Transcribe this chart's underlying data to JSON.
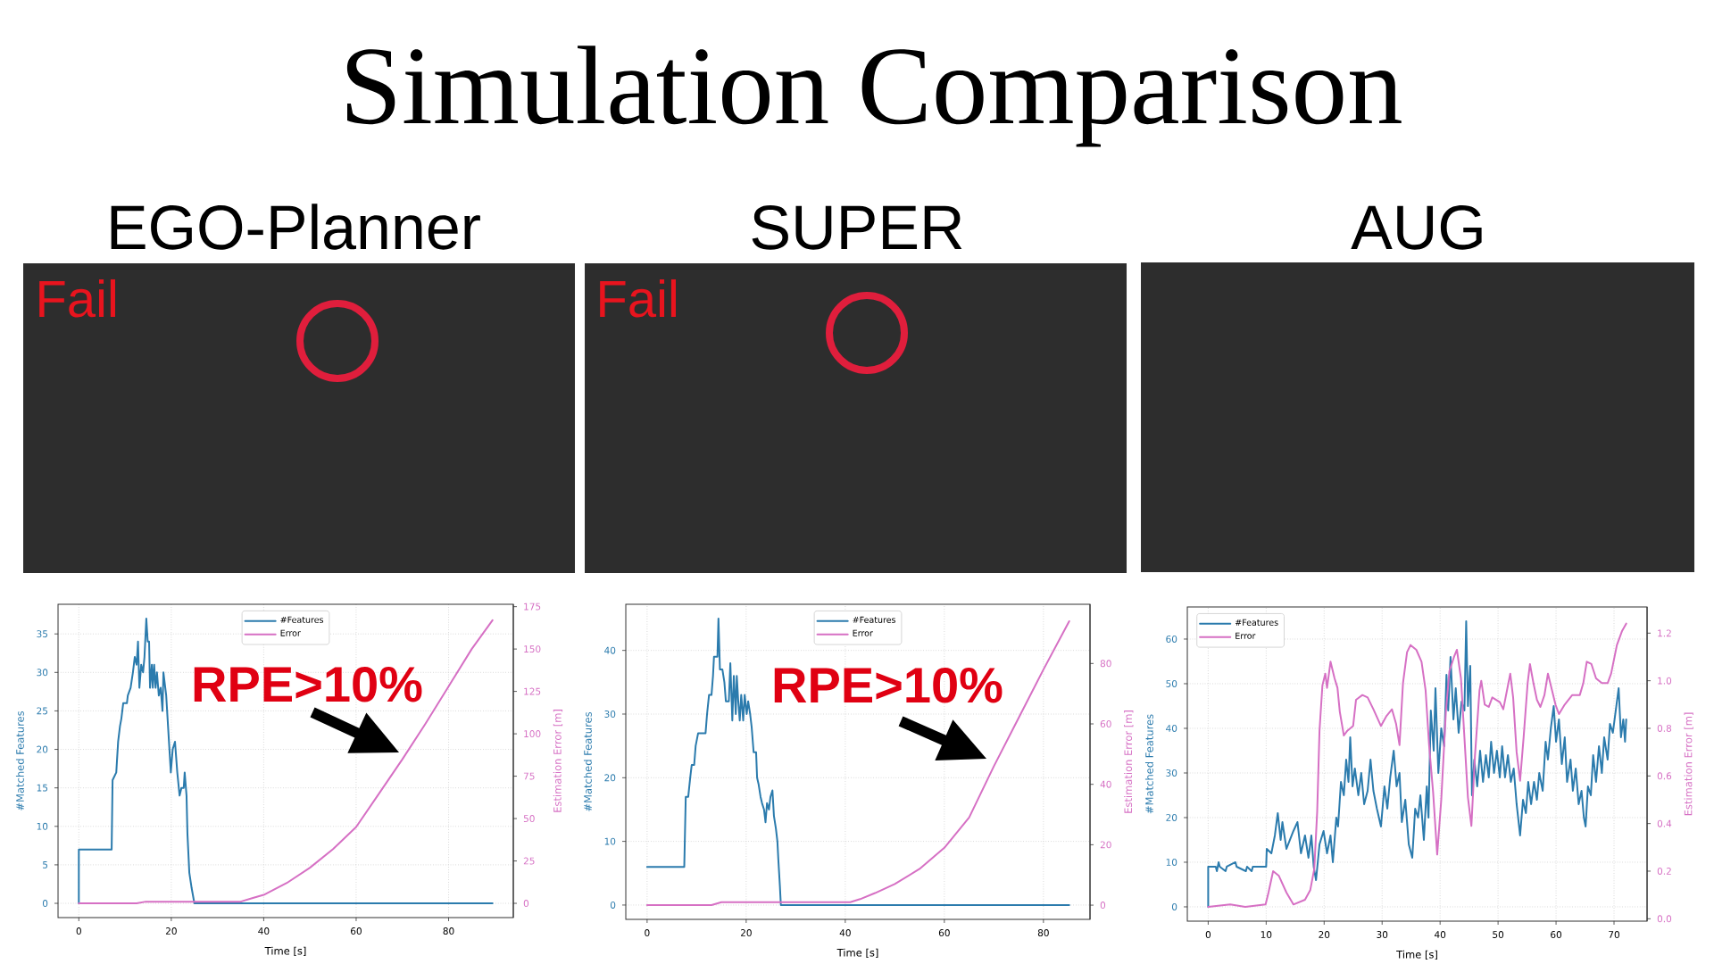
{
  "chart_data": [
    {
      "type": "other",
      "title": "Simulation Comparison"
    },
    {
      "type": "line",
      "title": "EGO-Planner",
      "xlabel": "Time [s]",
      "ylabel": "#Matched Features",
      "y2label": "Estimation Error [m]",
      "annotations": [
        "Fail",
        "RPE>10%"
      ],
      "xlim": [
        -4.5,
        94
      ],
      "xticks": [
        0,
        20,
        40,
        60,
        80
      ],
      "ylim": [
        -1.85,
        38.85
      ],
      "yticks": [
        0,
        5,
        10,
        15,
        20,
        25,
        30,
        35
      ],
      "y2lim": [
        -8.4,
        176.4
      ],
      "y2ticks": [
        0,
        25,
        50,
        75,
        100,
        125,
        150,
        175
      ],
      "grid": true,
      "legend": "top",
      "series": [
        {
          "name": "#Features",
          "color": "#2b7bad",
          "x": [
            0,
            0,
            7.1,
            7.3,
            8.1,
            8.5,
            8.9,
            9.2,
            9.6,
            10.4,
            10.6,
            11.2,
            11.7,
            12.1,
            12.5,
            12.8,
            13.1,
            13.5,
            13.9,
            14.2,
            14.6,
            14.9,
            15.2,
            15.4,
            15.8,
            16.0,
            16.3,
            16.6,
            16.9,
            17.3,
            17.7,
            18.1,
            18.3,
            18.9,
            19.3,
            19.9,
            20.3,
            20.8,
            21.3,
            21.8,
            22.2,
            22.7,
            22.9,
            23.3,
            23.5,
            23.9,
            24.4,
            25.0,
            89.5
          ],
          "values": [
            0,
            7,
            7,
            16,
            17,
            21,
            23,
            24,
            26,
            26,
            27,
            28,
            30,
            32,
            31,
            34,
            28,
            31,
            30,
            32,
            37,
            34,
            34,
            28,
            31,
            28,
            31,
            28,
            30,
            27,
            28,
            25,
            30,
            27,
            23,
            17,
            20,
            21,
            17,
            14,
            15,
            15,
            17,
            14,
            9,
            4,
            2,
            0,
            0
          ]
        },
        {
          "name": "Error",
          "color": "#d670c4",
          "axis": "y2",
          "x": [
            0,
            12.5,
            14.5,
            17,
            20,
            25,
            30,
            35,
            37.5,
            40,
            45,
            50,
            55,
            60,
            65,
            70,
            75,
            80,
            85,
            89.5
          ],
          "values": [
            0,
            0,
            1,
            1,
            1,
            1,
            1,
            1,
            3,
            5,
            12,
            21,
            32,
            45,
            65,
            85,
            106,
            128,
            150,
            167
          ]
        }
      ]
    },
    {
      "type": "line",
      "title": "SUPER",
      "xlabel": "Time [s]",
      "ylabel": "#Matched Features",
      "y2label": "Estimation Error [m]",
      "annotations": [
        "Fail",
        "RPE>10%"
      ],
      "xlim": [
        -4.3,
        89.4
      ],
      "xticks": [
        0,
        20,
        40,
        60,
        80
      ],
      "ylim": [
        -2.25,
        47.25
      ],
      "yticks": [
        0,
        10,
        20,
        30,
        40
      ],
      "y2lim": [
        -4.7,
        99.6
      ],
      "y2ticks": [
        0,
        20,
        40,
        60,
        80
      ],
      "grid": true,
      "legend": "top",
      "series": [
        {
          "name": "#Features",
          "color": "#2b7bad",
          "x": [
            0,
            7.5,
            7.8,
            8.3,
            8.7,
            9.0,
            9.5,
            9.8,
            10.3,
            11.8,
            12.1,
            12.5,
            13.0,
            13.3,
            13.5,
            14.2,
            14.4,
            14.7,
            15.2,
            15.6,
            15.9,
            16.5,
            16.8,
            17.2,
            17.5,
            17.9,
            18.1,
            18.4,
            18.7,
            19.0,
            19.4,
            19.7,
            20.1,
            20.4,
            20.8,
            21.1,
            21.5,
            22.0,
            22.2,
            22.5,
            22.9,
            23.2,
            23.6,
            23.9,
            24.2,
            24.6,
            24.9,
            25.3,
            25.6,
            26.0,
            26.3,
            26.5,
            26.8,
            27.0,
            85.2
          ],
          "values": [
            6,
            6,
            17,
            17,
            20,
            22,
            22,
            25,
            27,
            27,
            30,
            33,
            33,
            36,
            39,
            39,
            45,
            37,
            37,
            35,
            32,
            32,
            38,
            29,
            36,
            30,
            36,
            32,
            29,
            33,
            29,
            33,
            30,
            32,
            30,
            28,
            24,
            24,
            20,
            19,
            17,
            16,
            15,
            13,
            16,
            15,
            17,
            18,
            14,
            12,
            10,
            7,
            3,
            0,
            0
          ]
        },
        {
          "name": "Error",
          "color": "#d670c4",
          "axis": "y2",
          "x": [
            0,
            13,
            15,
            20,
            25,
            27,
            30,
            35,
            41,
            43,
            46,
            50,
            55,
            60,
            65,
            70,
            75,
            80,
            85.2
          ],
          "values": [
            0,
            0,
            1,
            1,
            1,
            1,
            1,
            1,
            1,
            2,
            4,
            7,
            12,
            19,
            29,
            46,
            62,
            78,
            94
          ]
        }
      ]
    },
    {
      "type": "line",
      "title": "AUG",
      "xlabel": "Time [s]",
      "ylabel": "#Matched Features",
      "y2label": "Estimation Error [m]",
      "xlim": [
        -3.6,
        75.7
      ],
      "xticks": [
        0,
        10,
        20,
        30,
        40,
        50,
        60,
        70
      ],
      "ylim": [
        -3.2,
        67.2
      ],
      "yticks": [
        0,
        10,
        20,
        30,
        40,
        50,
        60
      ],
      "y2lim": [
        -0.01,
        1.31
      ],
      "y2ticks": [
        {
          "value": 0,
          "label": "0.0"
        },
        0.2,
        0.4,
        0.6,
        0.8,
        {
          "value": 1,
          "label": "1.0"
        },
        1.2
      ],
      "grid": true,
      "legend": "top left",
      "series": [
        {
          "name": "#Features",
          "color": "#2b7bad",
          "x": [
            0,
            0,
            1.3,
            1.5,
            1.8,
            2.0,
            3.0,
            3.2,
            4.7,
            4.9,
            6.5,
            6.7,
            7.5,
            7.7,
            10.0,
            10.1,
            10.9,
            11.5,
            12.0,
            12.5,
            12.8,
            13.5,
            14.1,
            14.7,
            15.4,
            16.0,
            16.7,
            17.3,
            17.8,
            18.2,
            18.6,
            19.2,
            19.9,
            20.5,
            21.1,
            21.5,
            22.1,
            22.4,
            22.9,
            23.4,
            23.8,
            24.2,
            24.5,
            24.9,
            25.3,
            25.9,
            26.4,
            26.9,
            27.5,
            28.0,
            28.5,
            29.1,
            29.8,
            30.4,
            30.9,
            31.4,
            32.0,
            32.5,
            33.0,
            33.4,
            34.0,
            34.6,
            35.2,
            35.7,
            36.2,
            36.6,
            37.2,
            37.7,
            38.0,
            38.4,
            38.9,
            39.2,
            39.7,
            40.2,
            40.7,
            41.1,
            41.4,
            41.8,
            42.3,
            42.7,
            43.2,
            43.7,
            44.2,
            44.5,
            44.8,
            45.2,
            45.5,
            45.9,
            46.4,
            46.9,
            47.4,
            47.9,
            48.4,
            48.8,
            49.3,
            49.8,
            50.3,
            50.7,
            51.2,
            51.7,
            52.2,
            52.7,
            53.2,
            53.8,
            54.3,
            54.8,
            55.2,
            55.7,
            56.2,
            56.7,
            57.1,
            57.7,
            58.2,
            58.6,
            59.1,
            59.6,
            60.0,
            60.5,
            61.0,
            61.5,
            61.9,
            62.5,
            62.9,
            63.4,
            63.9,
            64.4,
            64.8,
            65.1,
            65.5,
            66.0,
            66.4,
            66.9,
            67.4,
            67.9,
            68.3,
            68.9,
            69.3,
            69.8,
            70.3,
            70.8,
            71.2,
            71.6,
            71.9,
            72.1
          ],
          "values": [
            0,
            9,
            9,
            8,
            10,
            9,
            8,
            9,
            10,
            9,
            8,
            9,
            8,
            9,
            9,
            13,
            12,
            16,
            21,
            15,
            19,
            13,
            15,
            17,
            19,
            12,
            16,
            11,
            16,
            9,
            6,
            14,
            17,
            12,
            16,
            10,
            20,
            18,
            28,
            25,
            33,
            28,
            38,
            27,
            31,
            25,
            30,
            23,
            26,
            33,
            26,
            22,
            18,
            27,
            22,
            29,
            35,
            27,
            30,
            19,
            24,
            14,
            11,
            22,
            20,
            25,
            15,
            27,
            20,
            44,
            35,
            49,
            30,
            40,
            36,
            52,
            44,
            56,
            42,
            49,
            39,
            46,
            44,
            64,
            45,
            54,
            25,
            33,
            27,
            35,
            28,
            34,
            29,
            37,
            30,
            35,
            29,
            36,
            29,
            34,
            28,
            31,
            23,
            16,
            24,
            21,
            28,
            23,
            28,
            24,
            30,
            26,
            37,
            33,
            40,
            45,
            37,
            42,
            32,
            38,
            28,
            33,
            26,
            31,
            23,
            26,
            20,
            18,
            27,
            25,
            34,
            28,
            36,
            30,
            38,
            33,
            41,
            39,
            44,
            49,
            38,
            42,
            37,
            42
          ]
        },
        {
          "name": "Error",
          "color": "#d670c4",
          "axis": "y2",
          "x": [
            0,
            3.8,
            6.4,
            9.9,
            10.4,
            11.2,
            12.2,
            13.5,
            14.7,
            15.7,
            16.7,
            17.6,
            18.3,
            18.8,
            19.2,
            19.7,
            20.2,
            20.5,
            21.1,
            21.8,
            22.3,
            22.7,
            23.4,
            24.0,
            25.0,
            25.5,
            26.6,
            27.5,
            28.5,
            29.8,
            30.7,
            31.7,
            32.4,
            33.0,
            33.6,
            34.3,
            34.9,
            35.9,
            36.8,
            37.5,
            38.1,
            38.8,
            39.5,
            40.2,
            41.0,
            41.6,
            42.4,
            42.9,
            43.6,
            44.2,
            44.8,
            45.4,
            46.0,
            46.8,
            47.1,
            47.7,
            48.4,
            49.0,
            50.3,
            50.9,
            51.7,
            52.1,
            52.6,
            53.2,
            53.8,
            54.4,
            55.1,
            55.5,
            56.1,
            56.7,
            57.3,
            58.0,
            58.6,
            59.3,
            59.9,
            60.5,
            61.5,
            62.8,
            64.1,
            64.7,
            65.3,
            66.1,
            66.9,
            67.9,
            68.9,
            69.5,
            70.5,
            71.4,
            72.1
          ],
          "values": [
            0.05,
            0.06,
            0.05,
            0.06,
            0.11,
            0.2,
            0.18,
            0.11,
            0.06,
            0.07,
            0.08,
            0.12,
            0.21,
            0.45,
            0.79,
            0.98,
            1.03,
            0.97,
            1.08,
            1.01,
            0.97,
            0.87,
            0.77,
            0.79,
            0.81,
            0.92,
            0.94,
            0.93,
            0.88,
            0.81,
            0.85,
            0.88,
            0.82,
            0.73,
            0.99,
            1.12,
            1.15,
            1.13,
            1.08,
            0.96,
            0.73,
            0.53,
            0.27,
            0.5,
            0.87,
            1.04,
            1.1,
            1.13,
            1.01,
            0.76,
            0.51,
            0.39,
            0.68,
            0.96,
            1.0,
            0.9,
            0.89,
            0.93,
            0.91,
            0.88,
            0.98,
            1.03,
            0.93,
            0.7,
            0.58,
            0.76,
            0.99,
            1.07,
            0.99,
            0.92,
            0.89,
            0.94,
            1.03,
            0.96,
            0.9,
            0.86,
            0.9,
            0.94,
            0.94,
            0.99,
            1.08,
            1.07,
            1.01,
            0.99,
            0.99,
            1.03,
            1.15,
            1.21,
            1.24
          ]
        }
      ]
    }
  ]
}
